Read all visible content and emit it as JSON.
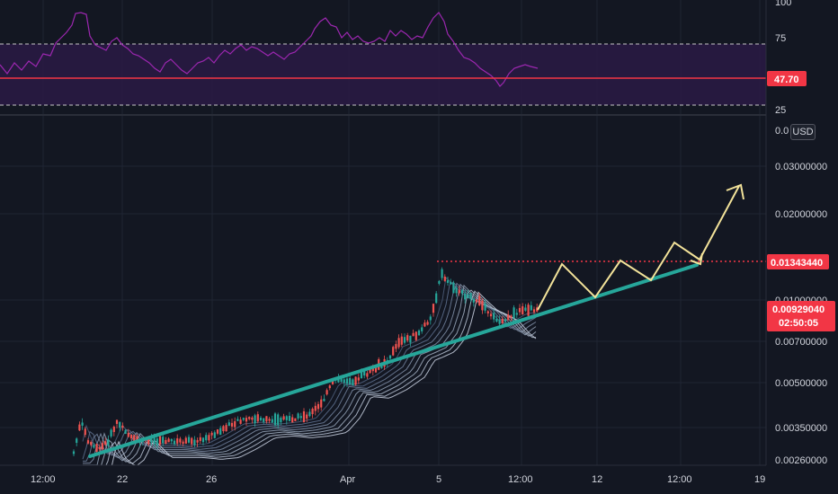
{
  "currency_label": "USD",
  "colors": {
    "background": "#131722",
    "grid": "#1f2433",
    "axis_text": "#d1d4dc",
    "up_candle": "#26a69a",
    "down_candle": "#ef5350",
    "trendline": "#26a69a",
    "projection": "#f3e39a",
    "rsi_line": "#9c27b0",
    "rsi_band": "#2a1a44",
    "price_tag_red": "#f23645",
    "ribbon": [
      "#4a5a76",
      "#5b6b8a",
      "#6c7b96",
      "#7d8ca3",
      "#8e9cb0",
      "#9fabbd",
      "#b0bacb",
      "#c1c9d8"
    ]
  },
  "rsi": {
    "ticks": [
      "100",
      "75",
      "25"
    ],
    "current_value": "47.70",
    "upper_band": 70,
    "lower_band": 30
  },
  "price_axis": {
    "ticks": [
      "0.0",
      "0.03000000",
      "0.02000000",
      "0.01000000",
      "0.00700000",
      "0.00500000",
      "0.00350000",
      "0.00260000"
    ],
    "resistance_tag": "0.01343440",
    "current_price_tag": "0.00929040",
    "countdown": "02:50:05"
  },
  "time_axis": {
    "ticks": [
      "12:00",
      "22",
      "26",
      "Apr",
      "5",
      "12:00",
      "12",
      "12:00",
      "19"
    ]
  }
}
